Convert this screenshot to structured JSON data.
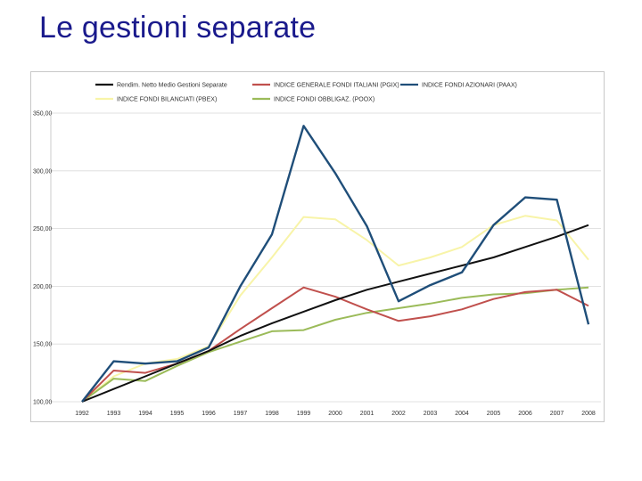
{
  "slide": {
    "title": "Le gestioni separate"
  },
  "chart_data": {
    "type": "line",
    "title": "",
    "xlabel": "",
    "ylabel": "",
    "x": [
      "1992",
      "1993",
      "1994",
      "1995",
      "1996",
      "1997",
      "1998",
      "1999",
      "2000",
      "2001",
      "2002",
      "2003",
      "2004",
      "2005",
      "2006",
      "2007",
      "2008"
    ],
    "y_ticks": [
      "100,00",
      "150,00",
      "200,00",
      "250,00",
      "300,00",
      "350,00"
    ],
    "ylim": [
      100,
      350
    ],
    "grid": "horizontal",
    "legend_position": "top",
    "series": [
      {
        "name": "Rendim. Netto Medio Gestioni Separate",
        "color": "#111111",
        "values": [
          100,
          111,
          122,
          133,
          144,
          157,
          168,
          178,
          188,
          197,
          204,
          211,
          218,
          225,
          234,
          243,
          253
        ]
      },
      {
        "name": "INDICE GENERALE FONDI ITALIANI (PGIX)",
        "color": "#c0504d",
        "values": [
          100,
          127,
          125,
          133,
          144,
          163,
          181,
          199,
          191,
          180,
          170,
          174,
          180,
          189,
          195,
          197,
          183
        ]
      },
      {
        "name": "INDICE FONDI AZIONARI (PAAX)",
        "color": "#1f4e79",
        "values": [
          100,
          135,
          133,
          135,
          147,
          200,
          245,
          339,
          298,
          252,
          187,
          201,
          212,
          253,
          277,
          275,
          167
        ]
      },
      {
        "name": "INDICE FONDI BILANCIATI (PBEX)",
        "color": "#f8f4a8",
        "values": [
          100,
          122,
          133,
          137,
          148,
          192,
          225,
          260,
          258,
          240,
          218,
          225,
          234,
          253,
          261,
          257,
          223
        ]
      },
      {
        "name": "INDICE FONDI OBBLIGAZ. (POOX)",
        "color": "#9bbb59",
        "values": [
          100,
          120,
          118,
          131,
          143,
          152,
          161,
          162,
          171,
          177,
          181,
          185,
          190,
          193,
          194,
          197,
          199
        ]
      }
    ]
  }
}
